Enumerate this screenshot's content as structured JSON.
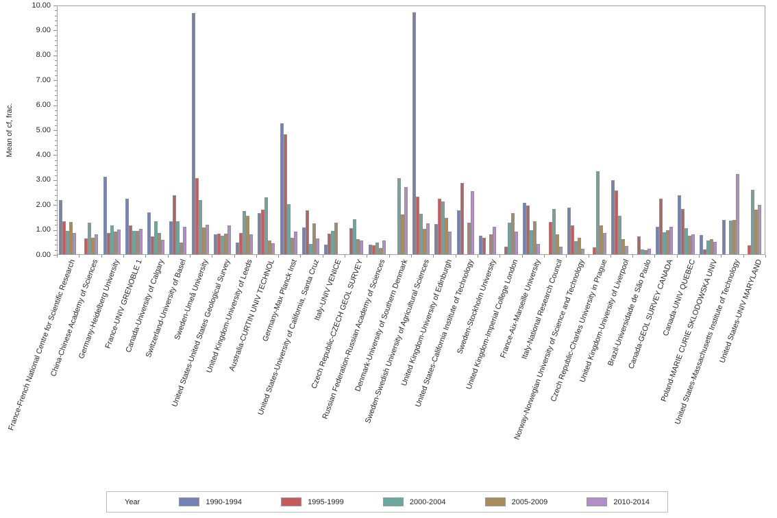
{
  "axes": {
    "y_tick_labels": [
      "0.00",
      "1.00",
      "2.00",
      "3.00",
      "4.00",
      "5.00",
      "6.00",
      "7.00",
      "8.00",
      "9.00",
      "10.00"
    ]
  },
  "legend": {
    "title": "Year",
    "items": [
      "1990-1994",
      "1995-1999",
      "2000-2004",
      "2005-2009",
      "2010-2014"
    ]
  },
  "style": {
    "bar_border": "#8f8f8f",
    "axis_color": "#8c8c8c",
    "frame_color": "#a0a0a0",
    "background": "#ffffff"
  },
  "chart_data": {
    "type": "bar",
    "title": "",
    "xlabel": "",
    "ylabel": "Mean of cf, frac.",
    "ylim": [
      0,
      10
    ],
    "ytick_step": 1.0,
    "grid": false,
    "legend_position": "bottom",
    "legend_title": "Year",
    "categories": [
      "France-French National Centre for Scientific Research",
      "China-Chinese Academy of Sciences",
      "Germany-Heidelberg University",
      "France-UNIV GRENOBLE 1",
      "Canada-University of Calgary",
      "Switzerland-University of Basel",
      "Sweden-Umeå University",
      "United States-United States Geological Survey",
      "United Kingdom-University of Leeds",
      "Australia-CURTIN UNIV TECHNOL",
      "Germany-Max Planck Inst",
      "United States-University of California, Santa Cruz",
      "Italy-UNIV VENICE",
      "Czech Republic-CZECH GEOL SURVEY",
      "Russian Federation-Russian Academy of Sciences",
      "Denmark-University of Southern Denmark",
      "Sweden-Swedish University of Agricultural Sciences",
      "United Kingdom-University of Edinburgh",
      "United States-California Institute of Technology",
      "Sweden-Stockholm University",
      "United Kingdom-Imperial College London",
      "France-Aix-Marseille University",
      "Italy-National Research Council",
      "Norway-Norwegian University of Science and Technology",
      "Czech Republic-Charles University in Prague",
      "United Kingdom-University of Liverpool",
      "Brazil-Universidade de São Paulo",
      "Canada-GEOL SURVEY CANADA",
      "Canada-UNIV QUEBEC",
      "Poland-MARIE CURIE SKLODOWSKA UNIV",
      "United States-Massachusetts Institute of Technology",
      "United States-UNIV MARYLAND"
    ],
    "series": [
      {
        "name": "1990-1994",
        "color": "#7382b4",
        "values": [
          2.15,
          0,
          3.08,
          2.2,
          1.65,
          1.28,
          9.65,
          0.78,
          0.43,
          1.62,
          5.23,
          1.04,
          0.35,
          0,
          0.37,
          0,
          9.67,
          1.17,
          1.72,
          0.72,
          0,
          2.03,
          0,
          1.83,
          0,
          2.95,
          0,
          1.06,
          2.33,
          0.74,
          1.36,
          0
        ]
      },
      {
        "name": "1995-1999",
        "color": "#c85a5a",
        "values": [
          1.29,
          0.6,
          0.83,
          1.12,
          0.68,
          2.33,
          3.03,
          0.8,
          0.82,
          1.75,
          4.78,
          1.72,
          0.81,
          1.01,
          0.32,
          0,
          2.29,
          2.2,
          2.82,
          0.63,
          0.27,
          1.92,
          1.27,
          1.12,
          0.25,
          2.53,
          0.7,
          2.21,
          1.78,
          0.16,
          0,
          0.32
        ]
      },
      {
        "name": "2000-2004",
        "color": "#69a8a0",
        "values": [
          0.92,
          1.23,
          1.14,
          0.92,
          1.28,
          1.3,
          2.15,
          0.72,
          1.7,
          2.25,
          1.97,
          0.39,
          0.92,
          1.38,
          0.44,
          3.03,
          1.59,
          2.09,
          0,
          0,
          1.24,
          0.94,
          1.8,
          0.5,
          3.3,
          1.5,
          0.16,
          0.86,
          1.01,
          0.53,
          1.31,
          2.56
        ]
      },
      {
        "name": "2005-2009",
        "color": "#aa8c5a",
        "values": [
          1.27,
          0.64,
          0.88,
          0.9,
          0.83,
          0.45,
          1.04,
          0.8,
          1.5,
          0.51,
          0.64,
          1.2,
          1.24,
          0.58,
          0.21,
          1.56,
          0.98,
          1.42,
          1.25,
          0.78,
          1.62,
          1.29,
          0.77,
          0.62,
          1.13,
          0.58,
          0.13,
          0.94,
          0.72,
          0.59,
          1.34,
          1.75
        ]
      },
      {
        "name": "2010-2014",
        "color": "#b48cc8",
        "values": [
          0.83,
          0.77,
          0.95,
          1.0,
          0.55,
          1.07,
          1.15,
          1.12,
          0.76,
          0.42,
          0.89,
          0.6,
          0,
          0.52,
          0.52,
          2.66,
          1.2,
          0.87,
          2.5,
          1.08,
          0.87,
          0.38,
          0.28,
          0.2,
          0.82,
          0.31,
          0.2,
          1.07,
          0.77,
          0.46,
          3.2,
          1.95
        ]
      }
    ]
  }
}
